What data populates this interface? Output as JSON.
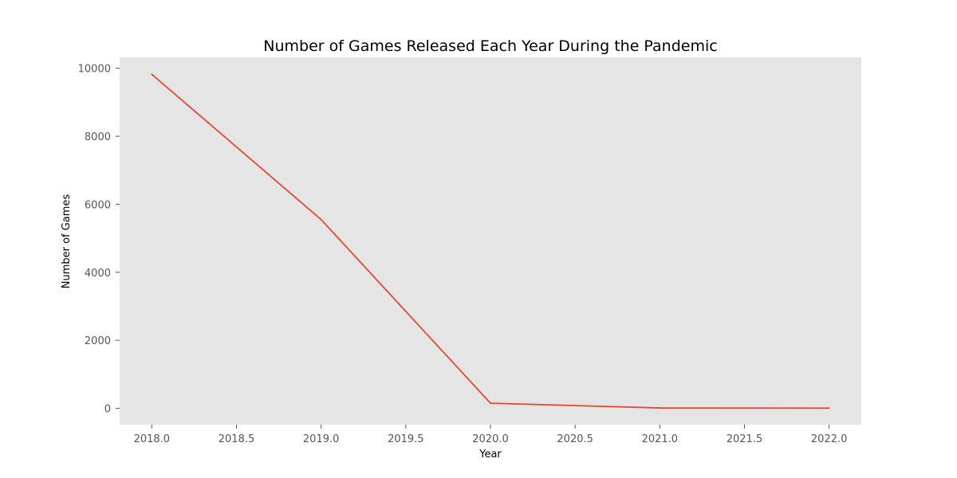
{
  "chart_data": {
    "type": "line",
    "title": "Number of Games Released Each Year During the Pandemic",
    "xlabel": "Year",
    "ylabel": "Number of Games",
    "x": [
      2018,
      2019,
      2020,
      2021,
      2022
    ],
    "series": [
      {
        "values": [
          9820,
          5550,
          150,
          10,
          5
        ],
        "color": "#E24A33"
      }
    ],
    "xlim": [
      2017.81,
      2022.19
    ],
    "ylim": [
      -480,
      10320
    ],
    "xticks": [
      2018.0,
      2018.5,
      2019.0,
      2019.5,
      2020.0,
      2020.5,
      2021.0,
      2021.5,
      2022.0
    ],
    "xtick_labels": [
      "2018.0",
      "2018.5",
      "2019.0",
      "2019.5",
      "2020.0",
      "2020.5",
      "2021.0",
      "2021.5",
      "2022.0"
    ],
    "yticks": [
      0,
      2000,
      4000,
      6000,
      8000,
      10000
    ],
    "ytick_labels": [
      "0",
      "2000",
      "4000",
      "6000",
      "8000",
      "10000"
    ],
    "grid": false,
    "legend": "none",
    "plot_background": "#E5E5E5",
    "tick_color": "#555555"
  }
}
